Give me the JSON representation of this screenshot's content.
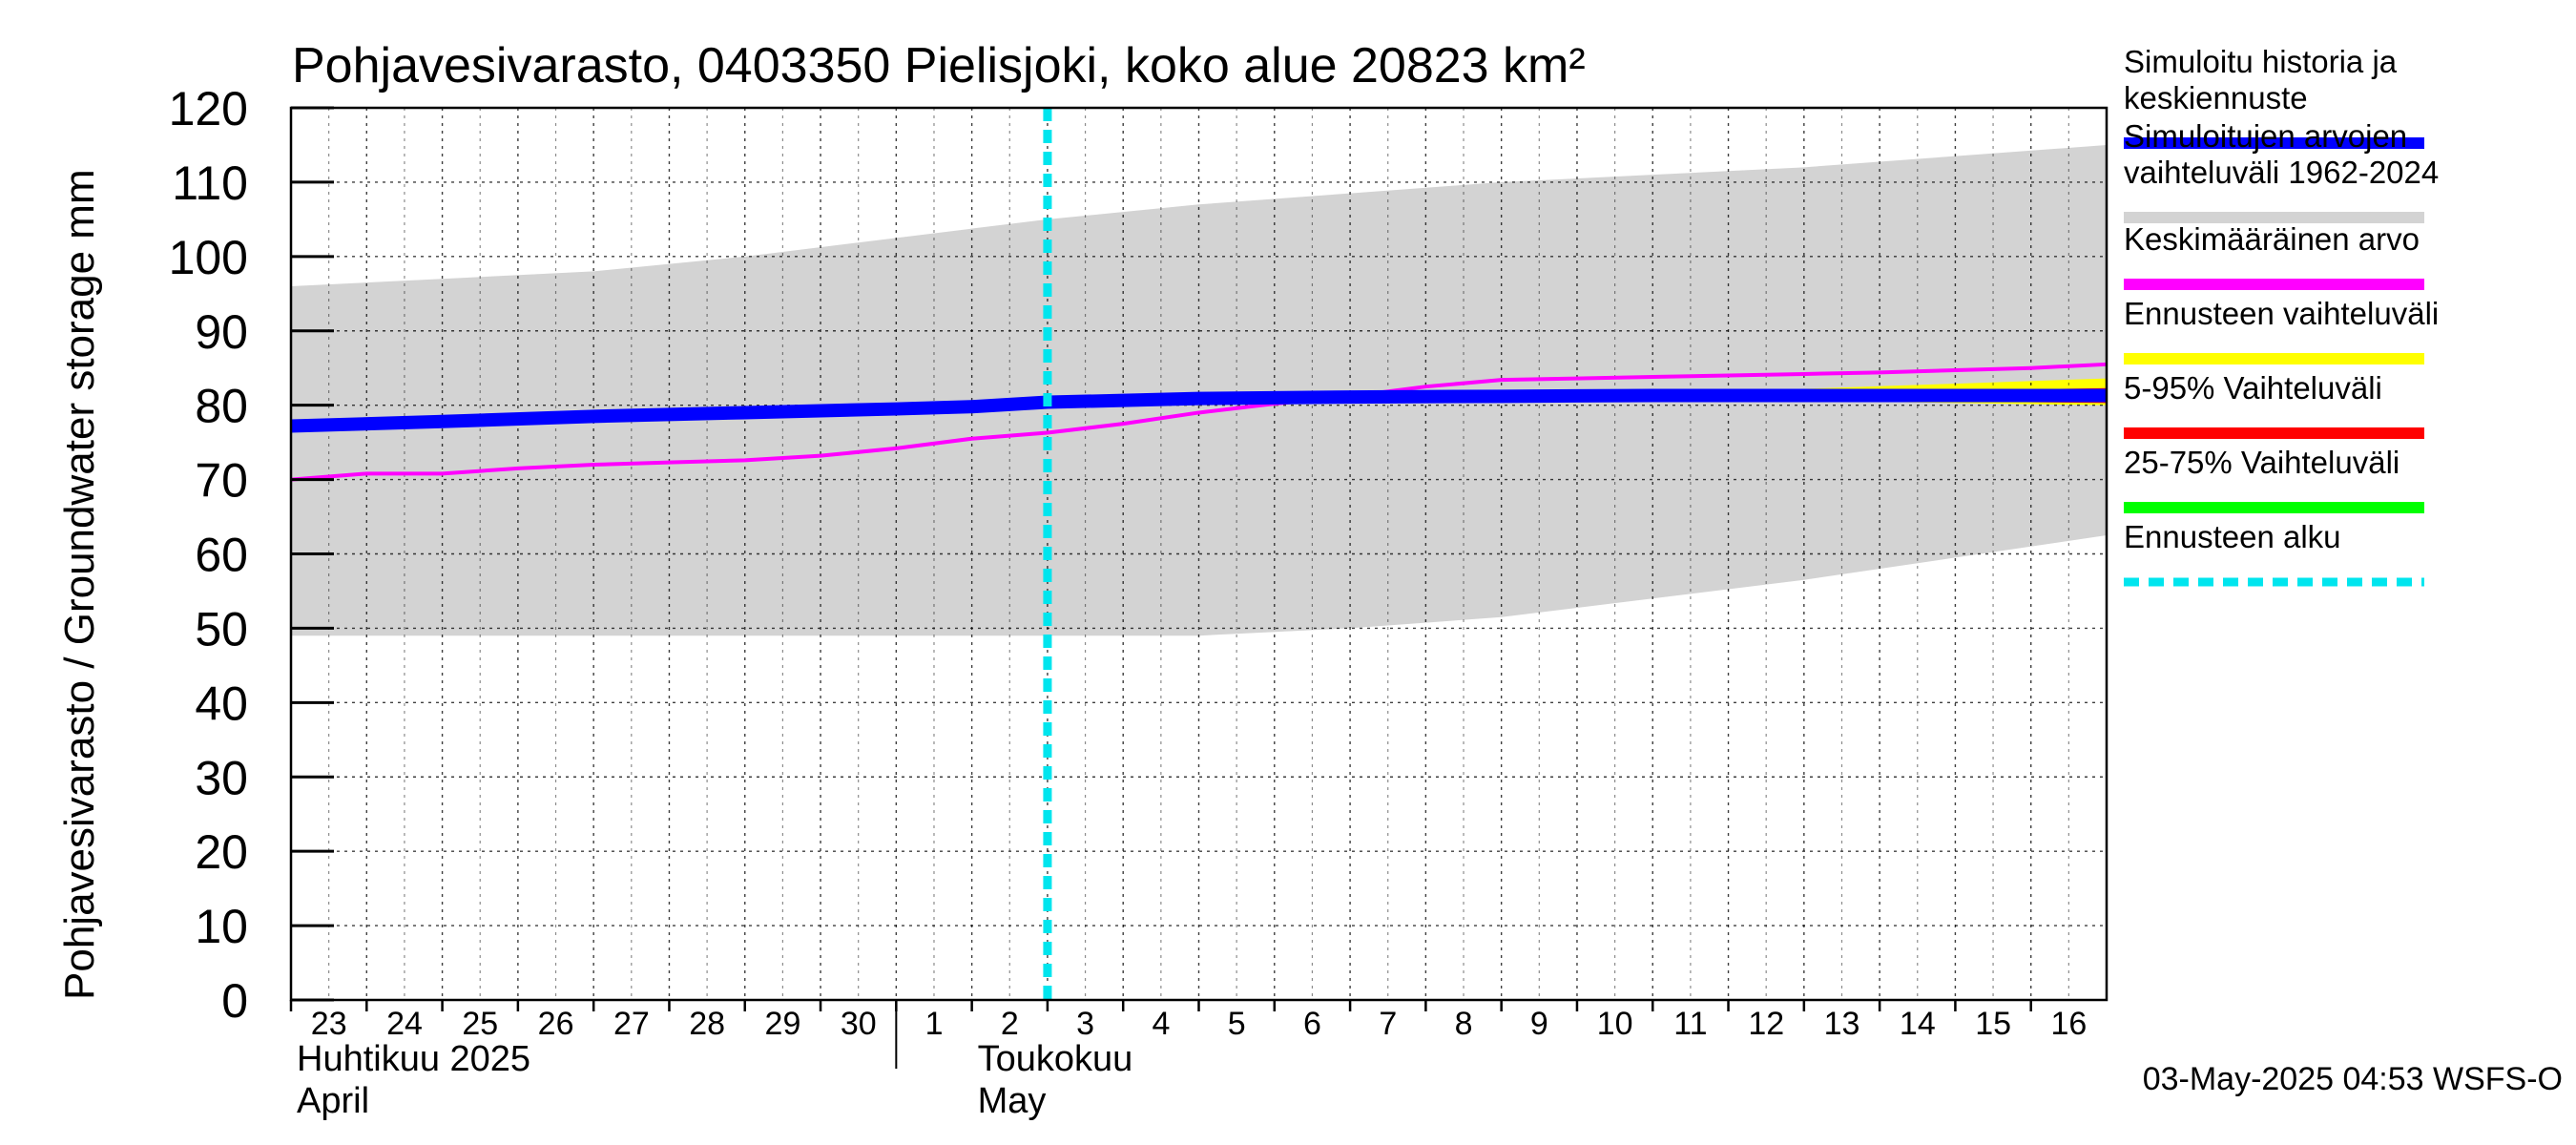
{
  "chart_data": {
    "type": "line",
    "title": "Pohjavesivarasto, 0403350 Pielisjoki, koko alue 20823 km²",
    "ylabel": "Pohjavesivarasto / Groundwater storage   mm",
    "ylim": [
      0,
      120
    ],
    "yticks": [
      0,
      10,
      20,
      30,
      40,
      50,
      60,
      70,
      80,
      90,
      100,
      110,
      120
    ],
    "x_range": [
      0,
      24
    ],
    "x_ticks": [
      {
        "label": "23",
        "x": 0
      },
      {
        "label": "24",
        "x": 1
      },
      {
        "label": "25",
        "x": 2
      },
      {
        "label": "26",
        "x": 3
      },
      {
        "label": "27",
        "x": 4
      },
      {
        "label": "28",
        "x": 5
      },
      {
        "label": "29",
        "x": 6
      },
      {
        "label": "30",
        "x": 7
      },
      {
        "label": "1",
        "x": 8
      },
      {
        "label": "2",
        "x": 9
      },
      {
        "label": "3",
        "x": 10
      },
      {
        "label": "4",
        "x": 11
      },
      {
        "label": "5",
        "x": 12
      },
      {
        "label": "6",
        "x": 13
      },
      {
        "label": "7",
        "x": 14
      },
      {
        "label": "8",
        "x": 15
      },
      {
        "label": "9",
        "x": 16
      },
      {
        "label": "10",
        "x": 17
      },
      {
        "label": "11",
        "x": 18
      },
      {
        "label": "12",
        "x": 19
      },
      {
        "label": "13",
        "x": 20
      },
      {
        "label": "14",
        "x": 21
      },
      {
        "label": "15",
        "x": 22
      },
      {
        "label": "16",
        "x": 23
      }
    ],
    "month_labels": [
      {
        "fi": "Huhtikuu  2025",
        "en": "April",
        "x": 0
      },
      {
        "fi": "Toukokuu",
        "en": "May",
        "x": 9
      }
    ],
    "month_divider_x": 8,
    "forecast_start_x": 10,
    "grid": true,
    "legend_position": "right",
    "legend": [
      {
        "label": [
          "Simuloitu historia ja",
          "keskiennuste"
        ],
        "color": "#0000ff",
        "style": "solid-thick"
      },
      {
        "label": [
          "Simuloitujen arvojen",
          "vaihteluväli 1962-2024"
        ],
        "color": "#d3d3d3",
        "style": "solid-thick"
      },
      {
        "label": [
          "Keskimääräinen arvo"
        ],
        "color": "#ff00ff",
        "style": "solid"
      },
      {
        "label": [
          "Ennusteen vaihteluväli"
        ],
        "color": "#ffff00",
        "style": "solid-thick"
      },
      {
        "label": [
          "5-95% Vaihteluväli"
        ],
        "color": "#ff0000",
        "style": "solid-thick"
      },
      {
        "label": [
          "25-75% Vaihteluväli"
        ],
        "color": "#00ff00",
        "style": "solid-thick"
      },
      {
        "label": [
          "Ennusteen alku"
        ],
        "color": "#00e5ee",
        "style": "dashed"
      }
    ],
    "series": [
      {
        "name": "Simuloitujen arvojen vaihteluväli 1962-2024",
        "type": "band",
        "color": "#d3d3d3",
        "x": [
          0,
          2,
          4,
          6,
          8,
          10,
          12,
          14,
          16,
          18,
          20,
          22,
          24
        ],
        "upper": [
          96,
          97,
          98,
          100,
          102.5,
          105,
          107,
          108.5,
          110,
          111,
          112,
          113.5,
          115
        ],
        "lower": [
          49,
          49,
          49,
          49,
          49,
          49,
          49,
          50,
          51.5,
          54,
          56.5,
          59.5,
          62.5
        ]
      },
      {
        "name": "Ennusteen vaihteluväli",
        "type": "band",
        "color": "#ffff00",
        "x": [
          10,
          14,
          18,
          20,
          22,
          24
        ],
        "upper": [
          80.6,
          81.2,
          81.6,
          82.2,
          82.9,
          83.6
        ],
        "lower": [
          80.4,
          80.8,
          80.9,
          80.6,
          80.3,
          80.0
        ]
      },
      {
        "name": "5-95% Vaihteluväli",
        "type": "band",
        "color": "#ff0000",
        "x": [
          10,
          14,
          18,
          20,
          22,
          24
        ],
        "upper": [
          80.6,
          81.1,
          81.4,
          81.7,
          82.0,
          82.3
        ],
        "lower": [
          80.4,
          80.8,
          80.9,
          80.7,
          80.5,
          80.3
        ]
      },
      {
        "name": "25-75% Vaihteluväli",
        "type": "band",
        "color": "#00ff00",
        "x": [
          10,
          14,
          18,
          20,
          22,
          24
        ],
        "upper": [
          80.6,
          81.0,
          81.3,
          81.5,
          81.7,
          81.9
        ],
        "lower": [
          80.4,
          80.9,
          81.0,
          81.0,
          81.0,
          81.0
        ]
      },
      {
        "name": "Keskimääräinen arvo",
        "type": "line",
        "color": "#ff00ff",
        "x": [
          0,
          1,
          2,
          3,
          4,
          5,
          6,
          7,
          8,
          9,
          10,
          11,
          12,
          13,
          14,
          15,
          16,
          17,
          18,
          19,
          20,
          21,
          22,
          23,
          24
        ],
        "values": [
          70,
          70.8,
          70.8,
          71.5,
          72,
          72.3,
          72.6,
          73.2,
          74.2,
          75.5,
          76.3,
          77.5,
          79,
          80.2,
          81.2,
          82.5,
          83.4,
          83.6,
          83.8,
          84,
          84.2,
          84.4,
          84.7,
          85,
          85.5
        ]
      },
      {
        "name": "Simuloitu historia ja keskiennuste",
        "type": "line",
        "color": "#0000ff",
        "x": [
          0,
          2,
          4,
          6,
          8,
          9,
          10,
          12,
          14,
          16,
          18,
          20,
          22,
          24
        ],
        "values": [
          77.2,
          77.8,
          78.5,
          79,
          79.5,
          79.8,
          80.4,
          80.9,
          81.1,
          81.2,
          81.3,
          81.3,
          81.3,
          81.3
        ]
      }
    ]
  },
  "footer": {
    "timestamp": "03-May-2025 04:53 WSFS-O"
  }
}
